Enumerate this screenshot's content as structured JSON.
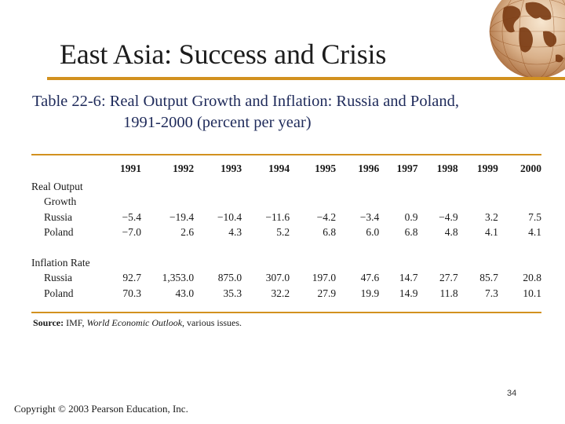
{
  "slide": {
    "title": "East Asia: Success and Crisis",
    "caption_tag": "Table 22-6",
    "caption_line1": ": Real Output Growth and Inflation: Russia and Poland,",
    "caption_line2": "1991-2000 (percent per year)",
    "page_number": "34",
    "copyright": "Copyright © 2003 Pearson Education, Inc."
  },
  "table": {
    "years": [
      "1991",
      "1992",
      "1993",
      "1994",
      "1995",
      "1996",
      "1997",
      "1998",
      "1999",
      "2000"
    ],
    "sections": [
      {
        "label_line1": "Real Output",
        "label_line2": "Growth",
        "rows": [
          {
            "name": "Russia",
            "values": [
              "−5.4",
              "−19.4",
              "−10.4",
              "−11.6",
              "−4.2",
              "−3.4",
              "0.9",
              "−4.9",
              "3.2",
              "7.5"
            ]
          },
          {
            "name": "Poland",
            "values": [
              "−7.0",
              "2.6",
              "4.3",
              "5.2",
              "6.8",
              "6.0",
              "6.8",
              "4.8",
              "4.1",
              "4.1"
            ]
          }
        ]
      },
      {
        "label_line1": "Inflation Rate",
        "rows": [
          {
            "name": "Russia",
            "values": [
              "92.7",
              "1,353.0",
              "875.0",
              "307.0",
              "197.0",
              "47.6",
              "14.7",
              "27.7",
              "85.7",
              "20.8"
            ]
          },
          {
            "name": "Poland",
            "values": [
              "70.3",
              "43.0",
              "35.3",
              "32.2",
              "27.9",
              "19.9",
              "14.9",
              "11.8",
              "7.3",
              "10.1"
            ]
          }
        ]
      }
    ],
    "source_label": "Source:",
    "source_org": "IMF,",
    "source_pub": "World Economic Outlook,",
    "source_rest": "various issues."
  },
  "colors": {
    "accent": "#d2911f",
    "caption": "#1e2a5a",
    "globe_brown": "#8b4513"
  },
  "icons": [
    "globe-icon"
  ]
}
